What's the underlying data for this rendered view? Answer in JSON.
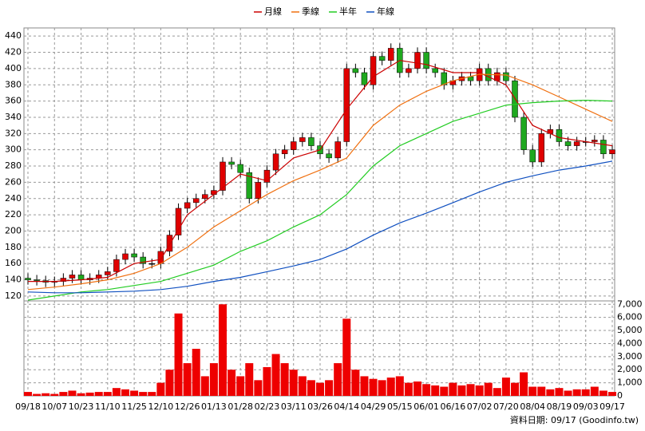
{
  "chart_data": {
    "type": "candlestick",
    "categories": [
      "09/18",
      null,
      null,
      "10/07",
      null,
      null,
      "10/23",
      null,
      null,
      "11/10",
      null,
      null,
      "11/25",
      null,
      null,
      "12/10",
      null,
      null,
      "12/26",
      null,
      null,
      "01/13",
      null,
      null,
      "01/28",
      null,
      null,
      "02/23",
      null,
      null,
      "03/11",
      null,
      null,
      "03/26",
      null,
      null,
      "04/14",
      null,
      null,
      "04/29",
      null,
      null,
      "05/15",
      null,
      null,
      "06/01",
      null,
      null,
      "06/16",
      null,
      null,
      "07/02",
      null,
      null,
      "07/20",
      null,
      null,
      "08/04",
      null,
      null,
      "08/19",
      null,
      null,
      "09/03",
      null,
      null,
      "09/17"
    ],
    "open": [
      142,
      140,
      139,
      137,
      138,
      142,
      146,
      140,
      142,
      146,
      150,
      165,
      172,
      168,
      160,
      160,
      175,
      195,
      228,
      235,
      240,
      245,
      250,
      285,
      282,
      272,
      240,
      260,
      275,
      295,
      300,
      310,
      315,
      305,
      295,
      290,
      310,
      400,
      395,
      380,
      415,
      410,
      425,
      395,
      400,
      420,
      400,
      395,
      380,
      385,
      390,
      385,
      400,
      385,
      395,
      385,
      340,
      300,
      285,
      320,
      325,
      310,
      305,
      310,
      310,
      312,
      295
    ],
    "high": [
      148,
      146,
      145,
      144,
      148,
      152,
      152,
      148,
      152,
      156,
      171,
      178,
      178,
      174,
      166,
      181,
      201,
      234,
      241,
      246,
      251,
      256,
      291,
      291,
      288,
      278,
      266,
      281,
      301,
      306,
      316,
      321,
      321,
      311,
      301,
      316,
      406,
      406,
      401,
      421,
      421,
      431,
      431,
      406,
      426,
      426,
      406,
      401,
      391,
      396,
      396,
      406,
      406,
      401,
      401,
      391,
      346,
      306,
      326,
      331,
      331,
      316,
      316,
      316,
      318,
      318,
      306
    ],
    "low": [
      134,
      133,
      131,
      131,
      132,
      136,
      134,
      134,
      136,
      140,
      144,
      159,
      162,
      154,
      154,
      154,
      169,
      189,
      222,
      229,
      234,
      239,
      244,
      276,
      266,
      234,
      234,
      254,
      269,
      289,
      294,
      304,
      299,
      289,
      284,
      284,
      304,
      389,
      374,
      374,
      404,
      404,
      389,
      389,
      394,
      394,
      389,
      374,
      374,
      379,
      379,
      379,
      379,
      379,
      379,
      334,
      294,
      279,
      279,
      314,
      304,
      299,
      299,
      304,
      304,
      289,
      289
    ],
    "close": [
      140,
      139,
      137,
      138,
      142,
      146,
      140,
      142,
      146,
      150,
      165,
      172,
      168,
      160,
      160,
      175,
      195,
      228,
      235,
      240,
      245,
      250,
      285,
      282,
      272,
      240,
      260,
      275,
      295,
      300,
      310,
      315,
      305,
      295,
      290,
      310,
      400,
      395,
      380,
      415,
      410,
      425,
      395,
      400,
      420,
      400,
      395,
      380,
      385,
      390,
      385,
      400,
      385,
      395,
      385,
      340,
      300,
      285,
      320,
      325,
      310,
      305,
      310,
      310,
      312,
      295,
      300
    ],
    "up_color": "#e00000",
    "down_color": "#1fa81f",
    "volume": [
      300,
      150,
      200,
      150,
      300,
      400,
      200,
      250,
      300,
      300,
      600,
      500,
      400,
      300,
      300,
      1000,
      2000,
      6300,
      2500,
      3600,
      1500,
      2500,
      7000,
      2000,
      1500,
      2500,
      1200,
      2200,
      3200,
      2500,
      2000,
      1500,
      1200,
      1000,
      1200,
      2500,
      5900,
      2000,
      1500,
      1300,
      1200,
      1400,
      1500,
      1000,
      1100,
      900,
      800,
      700,
      1000,
      800,
      900,
      800,
      1000,
      600,
      1400,
      1000,
      1800,
      700,
      700,
      500,
      600,
      400,
      500,
      500,
      700,
      400,
      300
    ],
    "volume_color": "#ee0000",
    "series": [
      {
        "name": "月線",
        "color": "#cc0000",
        "x": [
          0,
          3,
          6,
          9,
          12,
          15,
          18,
          21,
          24,
          27,
          30,
          33,
          36,
          39,
          42,
          45,
          48,
          51,
          54,
          57,
          60,
          63,
          66
        ],
        "values": [
          138,
          138,
          140,
          143,
          160,
          165,
          220,
          245,
          270,
          262,
          290,
          300,
          350,
          390,
          410,
          405,
          395,
          395,
          380,
          330,
          315,
          310,
          305
        ]
      },
      {
        "name": "季線",
        "color": "#f07010",
        "x": [
          0,
          3,
          6,
          9,
          12,
          15,
          18,
          21,
          24,
          27,
          30,
          33,
          36,
          39,
          42,
          45,
          48,
          51,
          54,
          57,
          60,
          63,
          66
        ],
        "values": [
          128,
          131,
          135,
          140,
          148,
          160,
          180,
          205,
          225,
          245,
          262,
          275,
          290,
          330,
          355,
          372,
          385,
          393,
          392,
          380,
          365,
          350,
          335
        ]
      },
      {
        "name": "半年",
        "color": "#22cc22",
        "x": [
          0,
          3,
          6,
          9,
          12,
          15,
          18,
          21,
          24,
          27,
          30,
          33,
          36,
          39,
          42,
          45,
          48,
          51,
          54,
          57,
          60,
          63,
          66
        ],
        "values": [
          115,
          120,
          125,
          128,
          133,
          138,
          148,
          158,
          175,
          188,
          205,
          220,
          245,
          280,
          305,
          320,
          335,
          345,
          355,
          358,
          360,
          361,
          360
        ]
      },
      {
        "name": "年線",
        "color": "#1050c0",
        "x": [
          0,
          3,
          6,
          9,
          12,
          15,
          18,
          21,
          24,
          27,
          30,
          33,
          36,
          39,
          42,
          45,
          48,
          51,
          54,
          57,
          60,
          63,
          66
        ],
        "values": [
          125,
          124,
          124,
          125,
          126,
          128,
          132,
          138,
          143,
          150,
          157,
          165,
          178,
          195,
          210,
          222,
          235,
          248,
          260,
          268,
          275,
          280,
          286
        ]
      }
    ],
    "ylim": [
      115,
      450
    ],
    "yticks": [
      120,
      140,
      160,
      180,
      200,
      220,
      240,
      260,
      280,
      300,
      320,
      340,
      360,
      380,
      400,
      420,
      440
    ],
    "y2lim": [
      0,
      7200
    ],
    "y2ticks": [
      0,
      {
        "value": 1000,
        "label": "1,000"
      },
      {
        "value": 2000,
        "label": "2,000"
      },
      {
        "value": 3000,
        "label": "3,000"
      },
      {
        "value": 4000,
        "label": "4,000"
      },
      {
        "value": 5000,
        "label": "5,000"
      },
      {
        "value": 6000,
        "label": "6,000"
      },
      {
        "value": 7000,
        "label": "7,000"
      }
    ],
    "grid": true,
    "footer": "資料日期: 09/17 (Goodinfo.tw)"
  }
}
